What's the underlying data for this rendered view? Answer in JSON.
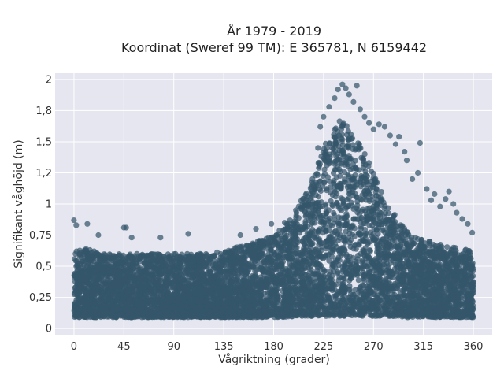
{
  "chart_data": {
    "type": "scatter",
    "title_line1": "År 1979 - 2019",
    "title_line2": "Koordinat (Sweref 99 TM): E 365781, N 6159442",
    "xlabel": "Vågriktning (grader)",
    "ylabel": "Signifikant våghöjd (m)",
    "xlim": [
      -17,
      377
    ],
    "ylim": [
      -0.05,
      2.05
    ],
    "xticks": [
      0,
      45,
      90,
      135,
      180,
      225,
      270,
      315,
      360
    ],
    "xtick_labels": [
      "0",
      "45",
      "90",
      "135",
      "180",
      "225",
      "270",
      "315",
      "360"
    ],
    "yticks": [
      0,
      0.25,
      0.5,
      0.75,
      1,
      1.25,
      1.5,
      1.75,
      2
    ],
    "ytick_labels": [
      "0",
      "0,25",
      "0,5",
      "0,75",
      "1",
      "1,2",
      "1,5",
      "1,8",
      "2"
    ],
    "grid": true,
    "marker_color": "#34566b",
    "background_color": "#e5e6ef",
    "envelope": {
      "x": [
        0,
        10,
        20,
        30,
        45,
        60,
        75,
        90,
        105,
        120,
        135,
        150,
        165,
        180,
        190,
        200,
        210,
        220,
        230,
        240,
        250,
        260,
        270,
        280,
        290,
        300,
        310,
        320,
        330,
        340,
        350,
        360
      ],
      "low": [
        0.09,
        0.09,
        0.09,
        0.09,
        0.09,
        0.09,
        0.09,
        0.09,
        0.09,
        0.09,
        0.09,
        0.09,
        0.09,
        0.09,
        0.09,
        0.1,
        0.1,
        0.1,
        0.1,
        0.1,
        0.1,
        0.1,
        0.1,
        0.1,
        0.1,
        0.09,
        0.09,
        0.09,
        0.09,
        0.09,
        0.09,
        0.09
      ],
      "high": [
        0.62,
        0.64,
        0.62,
        0.6,
        0.6,
        0.6,
        0.6,
        0.6,
        0.6,
        0.6,
        0.62,
        0.66,
        0.7,
        0.75,
        0.82,
        0.95,
        1.12,
        1.35,
        1.55,
        1.68,
        1.6,
        1.45,
        1.25,
        1.05,
        0.9,
        0.78,
        0.72,
        0.7,
        0.68,
        0.66,
        0.64,
        0.62
      ]
    },
    "outliers": [
      {
        "x": 0,
        "y": 0.87
      },
      {
        "x": 2,
        "y": 0.83
      },
      {
        "x": 12,
        "y": 0.84
      },
      {
        "x": 22,
        "y": 0.75
      },
      {
        "x": 45,
        "y": 0.81
      },
      {
        "x": 47,
        "y": 0.81
      },
      {
        "x": 52,
        "y": 0.73
      },
      {
        "x": 78,
        "y": 0.73
      },
      {
        "x": 103,
        "y": 0.76
      },
      {
        "x": 150,
        "y": 0.75
      },
      {
        "x": 164,
        "y": 0.8
      },
      {
        "x": 178,
        "y": 0.84
      },
      {
        "x": 190,
        "y": 0.85
      },
      {
        "x": 200,
        "y": 0.95
      },
      {
        "x": 207,
        "y": 1.04
      },
      {
        "x": 215,
        "y": 1.2
      },
      {
        "x": 220,
        "y": 1.45
      },
      {
        "x": 222,
        "y": 1.62
      },
      {
        "x": 225,
        "y": 1.7
      },
      {
        "x": 230,
        "y": 1.78
      },
      {
        "x": 235,
        "y": 1.85
      },
      {
        "x": 238,
        "y": 1.92
      },
      {
        "x": 242,
        "y": 1.96
      },
      {
        "x": 245,
        "y": 1.93
      },
      {
        "x": 248,
        "y": 1.88
      },
      {
        "x": 252,
        "y": 1.82
      },
      {
        "x": 255,
        "y": 1.95
      },
      {
        "x": 258,
        "y": 1.76
      },
      {
        "x": 262,
        "y": 1.7
      },
      {
        "x": 266,
        "y": 1.65
      },
      {
        "x": 270,
        "y": 1.6
      },
      {
        "x": 275,
        "y": 1.64
      },
      {
        "x": 280,
        "y": 1.62
      },
      {
        "x": 285,
        "y": 1.55
      },
      {
        "x": 290,
        "y": 1.48
      },
      {
        "x": 293,
        "y": 1.54
      },
      {
        "x": 298,
        "y": 1.42
      },
      {
        "x": 300,
        "y": 1.35
      },
      {
        "x": 305,
        "y": 1.2
      },
      {
        "x": 310,
        "y": 1.25
      },
      {
        "x": 312,
        "y": 1.49
      },
      {
        "x": 318,
        "y": 1.12
      },
      {
        "x": 322,
        "y": 1.03
      },
      {
        "x": 325,
        "y": 1.08
      },
      {
        "x": 330,
        "y": 0.98
      },
      {
        "x": 335,
        "y": 1.04
      },
      {
        "x": 338,
        "y": 1.1
      },
      {
        "x": 342,
        "y": 1.0
      },
      {
        "x": 345,
        "y": 0.93
      },
      {
        "x": 350,
        "y": 0.88
      },
      {
        "x": 355,
        "y": 0.84
      },
      {
        "x": 359,
        "y": 0.77
      }
    ]
  }
}
